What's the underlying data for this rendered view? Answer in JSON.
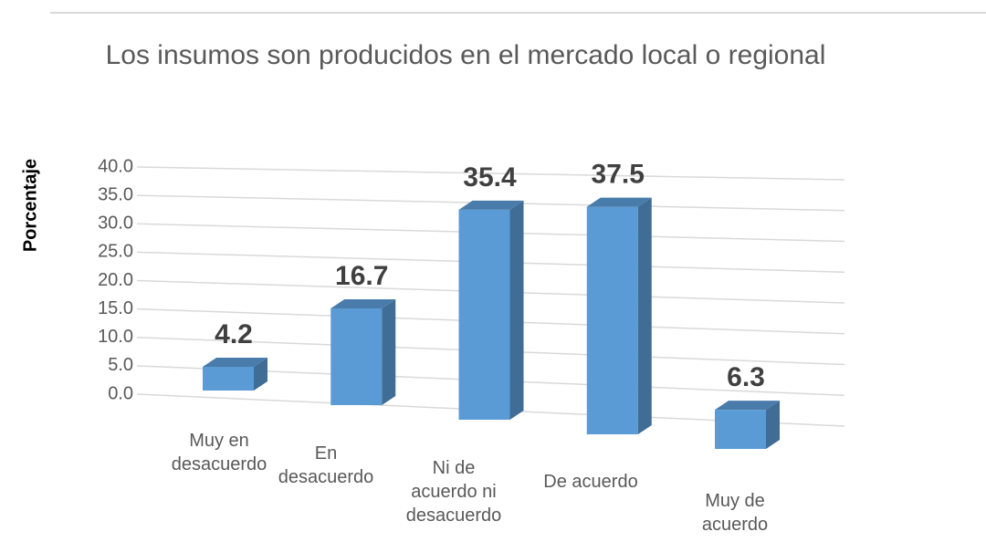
{
  "chart_data": {
    "type": "bar3d",
    "title": "Los insumos son producidos en el mercado local o regional",
    "y_label": "Porcentaje",
    "categories": [
      "Muy en desacuerdo",
      "En desacuerdo",
      "Ni de acuerdo ni desacuerdo",
      "De acuerdo",
      "Muy de acuerdo"
    ],
    "values": [
      4.2,
      16.7,
      35.4,
      37.5,
      6.3
    ],
    "color": "#5b9bd5",
    "ylim": [
      0,
      40
    ],
    "yticks": [
      {
        "value": 0,
        "label": "0.0"
      },
      {
        "value": 5,
        "label": "5.0"
      },
      {
        "value": 10,
        "label": "10.0"
      },
      {
        "value": 15,
        "label": "15.0"
      },
      {
        "value": 20,
        "label": "20.0"
      },
      {
        "value": 25,
        "label": "25.0"
      },
      {
        "value": 30,
        "label": "30.0"
      },
      {
        "value": 35,
        "label": "35.0"
      },
      {
        "value": 40,
        "label": "40.0"
      }
    ],
    "grid": true
  }
}
